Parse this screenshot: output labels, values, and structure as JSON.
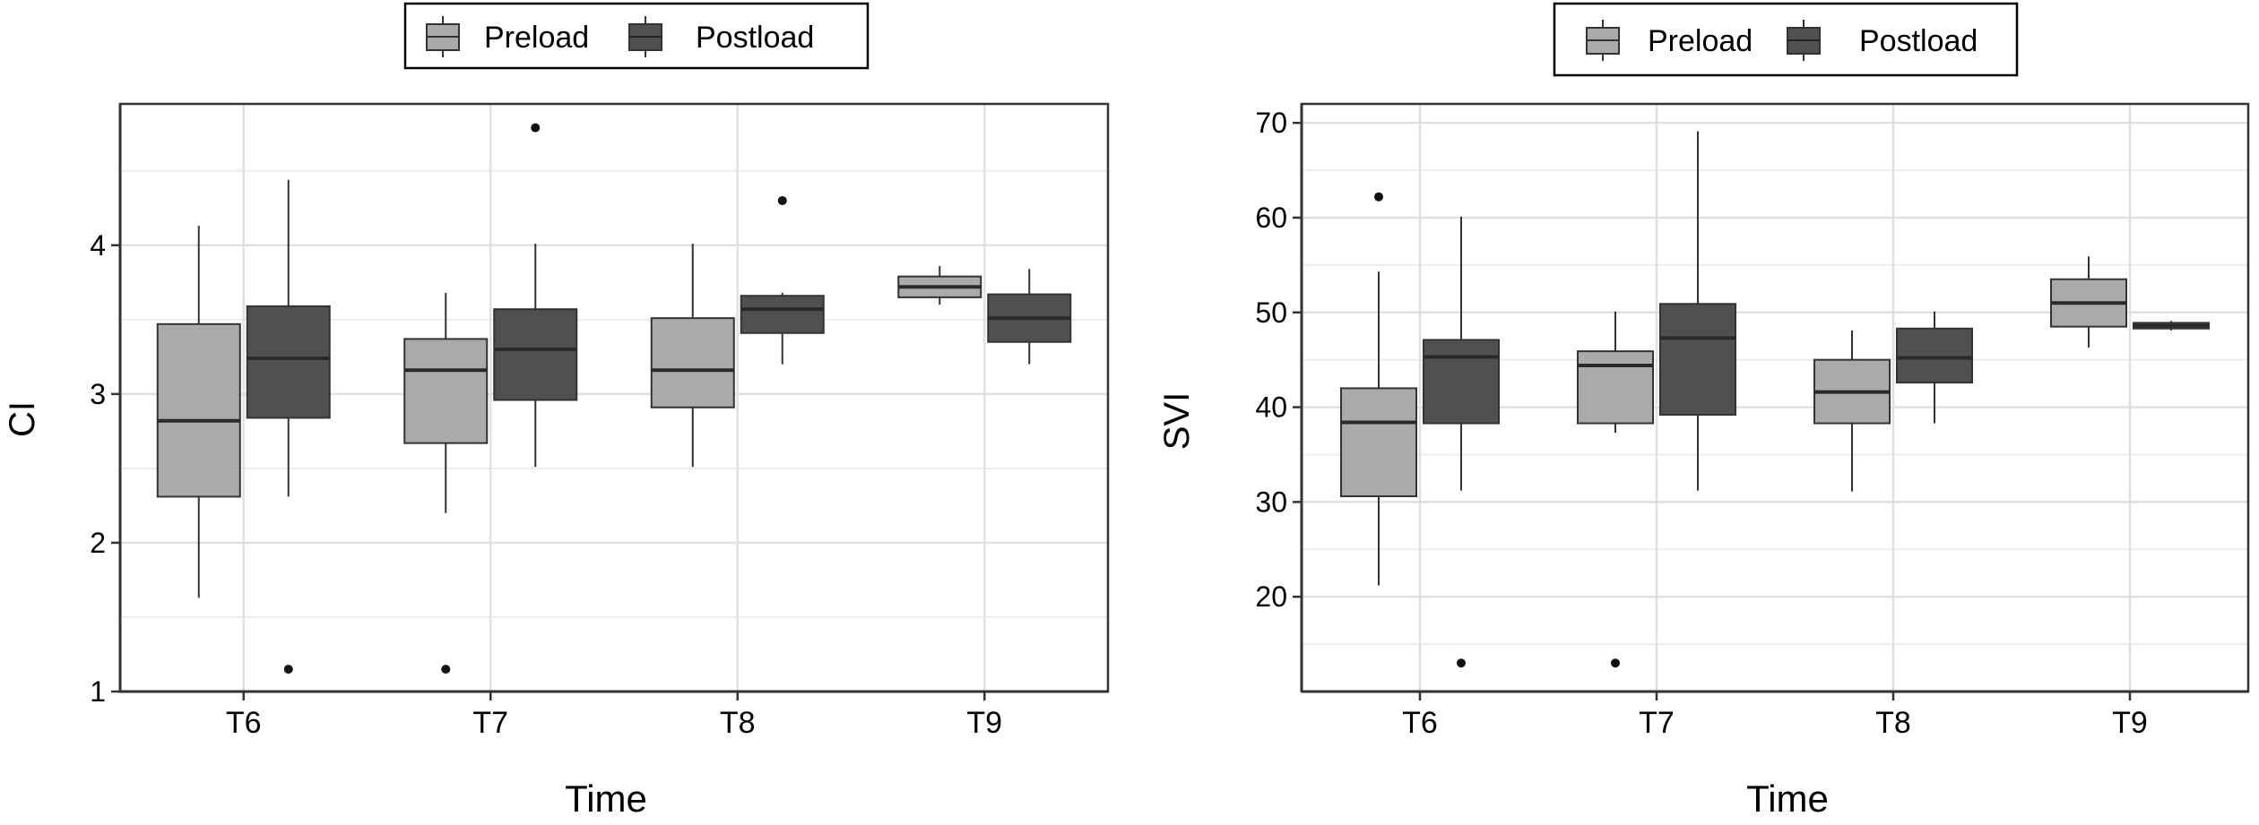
{
  "chart_data": [
    {
      "type": "boxplot",
      "title": "",
      "xlabel": "Time",
      "ylabel": "CI",
      "ylim": [
        1,
        4.95
      ],
      "yticks": [
        1,
        2,
        3,
        4
      ],
      "grid": true,
      "legend_position": "top",
      "categories": [
        "T6",
        "T7",
        "T8",
        "T9"
      ],
      "series": [
        {
          "name": "Preload",
          "color": "#aaaaaa",
          "boxes": [
            {
              "category": "T6",
              "min": 1.63,
              "q1": 2.31,
              "median": 2.82,
              "q3": 3.47,
              "max": 4.13,
              "outliers": []
            },
            {
              "category": "T7",
              "min": 2.2,
              "q1": 2.67,
              "median": 3.16,
              "q3": 3.37,
              "max": 3.68,
              "outliers": [
                1.15
              ]
            },
            {
              "category": "T8",
              "min": 2.51,
              "q1": 2.91,
              "median": 3.16,
              "q3": 3.51,
              "max": 4.01,
              "outliers": []
            },
            {
              "category": "T9",
              "min": 3.6,
              "q1": 3.65,
              "median": 3.72,
              "q3": 3.79,
              "max": 3.86,
              "outliers": []
            }
          ]
        },
        {
          "name": "Postload",
          "color": "#505050",
          "boxes": [
            {
              "category": "T6",
              "min": 2.31,
              "q1": 2.84,
              "median": 3.24,
              "q3": 3.59,
              "max": 4.44,
              "outliers": [
                1.15
              ]
            },
            {
              "category": "T7",
              "min": 2.51,
              "q1": 2.96,
              "median": 3.3,
              "q3": 3.57,
              "max": 4.01,
              "outliers": [
                4.79
              ]
            },
            {
              "category": "T8",
              "min": 3.2,
              "q1": 3.41,
              "median": 3.57,
              "q3": 3.66,
              "max": 3.68,
              "outliers": [
                4.3
              ]
            },
            {
              "category": "T9",
              "min": 3.2,
              "q1": 3.35,
              "median": 3.51,
              "q3": 3.67,
              "max": 3.84,
              "outliers": []
            }
          ]
        }
      ]
    },
    {
      "type": "boxplot",
      "title": "",
      "xlabel": "Time",
      "ylabel": "SVI",
      "ylim": [
        10,
        72
      ],
      "yticks": [
        20,
        30,
        40,
        50,
        60,
        70
      ],
      "grid": true,
      "legend_position": "top",
      "categories": [
        "T6",
        "T7",
        "T8",
        "T9"
      ],
      "series": [
        {
          "name": "Preload",
          "color": "#aaaaaa",
          "boxes": [
            {
              "category": "T6",
              "min": 21.2,
              "q1": 30.6,
              "median": 38.4,
              "q3": 42,
              "max": 54.3,
              "outliers": [
                62.2
              ]
            },
            {
              "category": "T7",
              "min": 37.3,
              "q1": 38.3,
              "median": 44.4,
              "q3": 45.9,
              "max": 50.1,
              "outliers": [
                13
              ]
            },
            {
              "category": "T8",
              "min": 31.1,
              "q1": 38.3,
              "median": 41.6,
              "q3": 45,
              "max": 48.1,
              "outliers": []
            },
            {
              "category": "T9",
              "min": 46.3,
              "q1": 48.5,
              "median": 51,
              "q3": 53.5,
              "max": 55.9,
              "outliers": []
            }
          ]
        },
        {
          "name": "Postload",
          "color": "#505050",
          "boxes": [
            {
              "category": "T6",
              "min": 31.2,
              "q1": 38.3,
              "median": 45.3,
              "q3": 47.1,
              "max": 60.1,
              "outliers": [
                13
              ]
            },
            {
              "category": "T7",
              "min": 31.2,
              "q1": 39.2,
              "median": 47.3,
              "q3": 50.9,
              "max": 69.1,
              "outliers": []
            },
            {
              "category": "T8",
              "min": 38.3,
              "q1": 42.6,
              "median": 45.2,
              "q3": 48.3,
              "max": 50.1,
              "outliers": []
            },
            {
              "category": "T9",
              "min": 48.1,
              "q1": 48.3,
              "median": 48.6,
              "q3": 48.9,
              "max": 49.1,
              "outliers": []
            }
          ]
        }
      ]
    }
  ]
}
